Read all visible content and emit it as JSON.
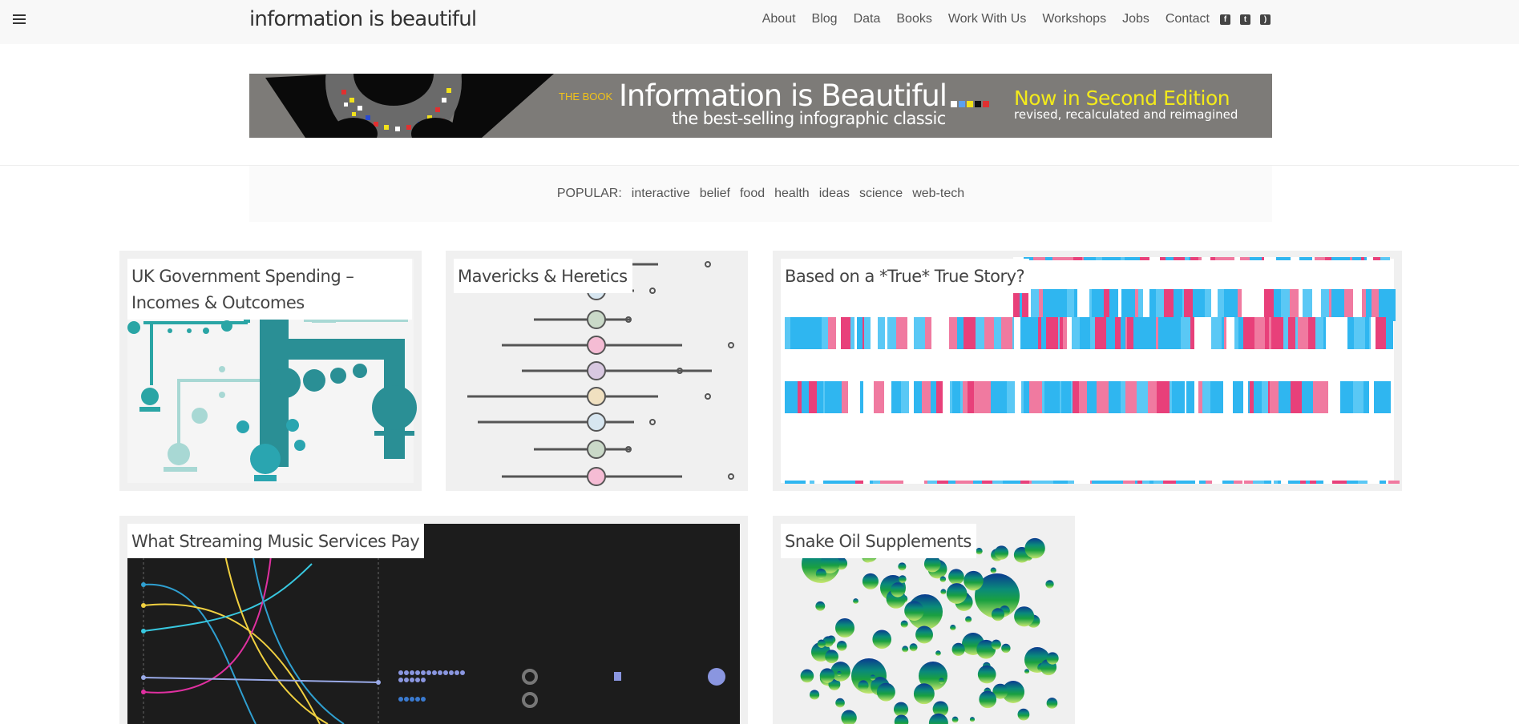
{
  "header": {
    "logo": "information is beautiful",
    "nav": [
      "About",
      "Blog",
      "Data",
      "Books",
      "Work With Us",
      "Workshops",
      "Jobs",
      "Contact"
    ],
    "social": [
      "facebook-icon",
      "twitter-icon",
      "rss-icon"
    ]
  },
  "banner": {
    "label": "THE BOOK",
    "title": "Information is Beautiful",
    "subtitle": "the best-selling infographic classic",
    "edition": "Now in Second Edition",
    "edition_sub": "revised, recalculated and reimagined",
    "colors": {
      "background": "#7d7b78",
      "edition": "#f3ea1b",
      "label": "#f2c319"
    }
  },
  "popular": {
    "label": "POPULAR:",
    "tags": [
      "interactive",
      "belief",
      "food",
      "health",
      "ideas",
      "science",
      "web-tech"
    ]
  },
  "cards": [
    {
      "title": "UK Government Spending – Incomes & Outcomes",
      "accent": "#2a9aa0"
    },
    {
      "title": "Mavericks & Heretics",
      "accent": "#555555"
    },
    {
      "title": "Based on a *True* True Story?",
      "accent": "#2fb6f0"
    },
    {
      "title": "What Streaming Music Services Pay",
      "accent": "#1c1c1c"
    },
    {
      "title": "Snake Oil Supplements",
      "accent": "#1a9a60"
    }
  ]
}
